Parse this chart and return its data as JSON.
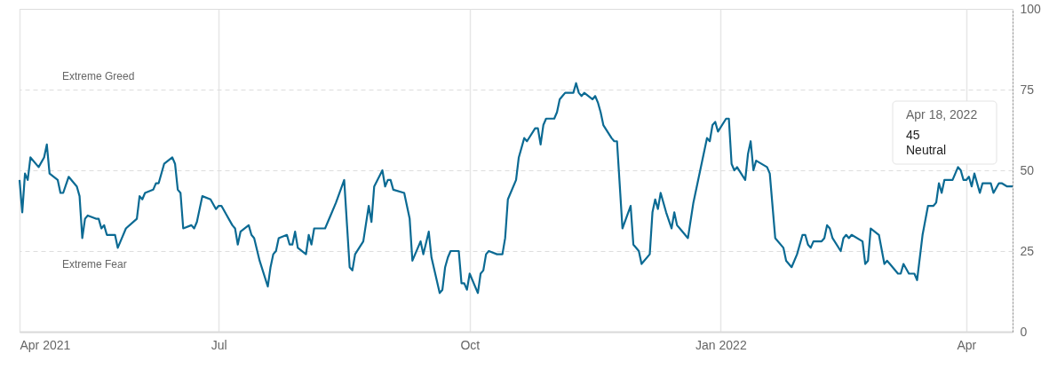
{
  "chart_data": {
    "type": "line",
    "color": "#0b6a93",
    "marker": "none",
    "line_style": "solid",
    "grid": true,
    "xlim": [
      "2021-04-19",
      "2022-04-18"
    ],
    "xticks": [
      {
        "value": "2021-04-19",
        "label": "Apr 2021"
      },
      {
        "value": "2021-07-01",
        "label": "Jul"
      },
      {
        "value": "2021-10-01",
        "label": "Oct"
      },
      {
        "value": "2022-01-01",
        "label": "Jan 2022"
      },
      {
        "value": "2022-04-01",
        "label": "Apr"
      }
    ],
    "ylim": [
      0,
      100
    ],
    "yticks": [
      0,
      25,
      50,
      75,
      100
    ],
    "annotations": [
      "Extreme Greed",
      "Extreme Fear",
      "Apr 18, 2022",
      "45",
      "Neutral"
    ],
    "x": [
      "2021-04-19",
      "2021-04-20",
      "2021-04-21",
      "2021-04-22",
      "2021-04-23",
      "2021-04-26",
      "2021-04-28",
      "2021-04-29",
      "2021-04-30",
      "2021-05-03",
      "2021-05-04",
      "2021-05-05",
      "2021-05-07",
      "2021-05-10",
      "2021-05-11",
      "2021-05-12",
      "2021-05-13",
      "2021-05-14",
      "2021-05-17",
      "2021-05-18",
      "2021-05-19",
      "2021-05-20",
      "2021-05-21",
      "2021-05-24",
      "2021-05-25",
      "2021-05-26",
      "2021-05-28",
      "2021-06-01",
      "2021-06-02",
      "2021-06-03",
      "2021-06-04",
      "2021-06-07",
      "2021-06-08",
      "2021-06-09",
      "2021-06-11",
      "2021-06-14",
      "2021-06-15",
      "2021-06-16",
      "2021-06-17",
      "2021-06-18",
      "2021-06-21",
      "2021-06-22",
      "2021-06-23",
      "2021-06-25",
      "2021-06-28",
      "2021-06-30",
      "2021-07-01",
      "2021-07-02",
      "2021-07-06",
      "2021-07-07",
      "2021-07-08",
      "2021-07-09",
      "2021-07-12",
      "2021-07-13",
      "2021-07-14",
      "2021-07-16",
      "2021-07-19",
      "2021-07-20",
      "2021-07-21",
      "2021-07-22",
      "2021-07-23",
      "2021-07-26",
      "2021-07-27",
      "2021-07-28",
      "2021-07-29",
      "2021-07-30",
      "2021-08-02",
      "2021-08-03",
      "2021-08-04",
      "2021-08-05",
      "2021-08-07",
      "2021-08-09",
      "2021-08-10",
      "2021-08-11",
      "2021-08-13",
      "2021-08-16",
      "2021-08-18",
      "2021-08-19",
      "2021-08-20",
      "2021-08-23",
      "2021-08-25",
      "2021-08-26",
      "2021-08-27",
      "2021-08-30",
      "2021-08-31",
      "2021-09-01",
      "2021-09-02",
      "2021-09-03",
      "2021-09-07",
      "2021-09-08",
      "2021-09-09",
      "2021-09-10",
      "2021-09-13",
      "2021-09-14",
      "2021-09-16",
      "2021-09-17",
      "2021-09-20",
      "2021-09-21",
      "2021-09-22",
      "2021-09-23",
      "2021-09-24",
      "2021-09-27",
      "2021-09-28",
      "2021-09-29",
      "2021-09-30",
      "2021-10-01",
      "2021-10-04",
      "2021-10-05",
      "2021-10-06",
      "2021-10-07",
      "2021-10-08",
      "2021-10-11",
      "2021-10-12",
      "2021-10-13",
      "2021-10-14",
      "2021-10-15",
      "2021-10-18",
      "2021-10-19",
      "2021-10-21",
      "2021-10-22",
      "2021-10-25",
      "2021-10-26",
      "2021-10-27",
      "2021-10-28",
      "2021-10-29",
      "2021-11-01",
      "2021-11-02",
      "2021-11-03",
      "2021-11-04",
      "2021-11-05",
      "2021-11-08",
      "2021-11-09",
      "2021-11-10",
      "2021-11-11",
      "2021-11-12",
      "2021-11-15",
      "2021-11-16",
      "2021-11-17",
      "2021-11-18",
      "2021-11-19",
      "2021-11-22",
      "2021-11-23",
      "2021-11-24",
      "2021-11-26",
      "2021-11-29",
      "2021-11-30",
      "2021-12-02",
      "2021-12-03",
      "2021-12-06",
      "2021-12-07",
      "2021-12-08",
      "2021-12-09",
      "2021-12-10",
      "2021-12-12",
      "2021-12-14",
      "2021-12-15",
      "2021-12-16",
      "2021-12-17",
      "2021-12-20",
      "2021-12-22",
      "2021-12-27",
      "2021-12-28",
      "2021-12-29",
      "2021-12-30",
      "2021-12-31",
      "2022-01-03",
      "2022-01-04",
      "2022-01-05",
      "2022-01-06",
      "2022-01-07",
      "2022-01-10",
      "2022-01-11",
      "2022-01-12",
      "2022-01-13",
      "2022-01-14",
      "2022-01-18",
      "2022-01-19",
      "2022-01-21",
      "2022-01-24",
      "2022-01-25",
      "2022-01-27",
      "2022-01-29",
      "2022-01-31",
      "2022-02-01",
      "2022-02-02",
      "2022-02-03",
      "2022-02-04",
      "2022-02-07",
      "2022-02-08",
      "2022-02-09",
      "2022-02-10",
      "2022-02-11",
      "2022-02-14",
      "2022-02-15",
      "2022-02-16",
      "2022-02-17",
      "2022-02-18",
      "2022-02-22",
      "2022-02-23",
      "2022-02-24",
      "2022-02-25",
      "2022-02-28",
      "2022-03-02",
      "2022-03-03",
      "2022-03-04",
      "2022-03-07",
      "2022-03-08",
      "2022-03-09",
      "2022-03-11",
      "2022-03-13",
      "2022-03-14",
      "2022-03-16",
      "2022-03-18",
      "2022-03-20",
      "2022-03-21",
      "2022-03-22",
      "2022-03-23",
      "2022-03-24",
      "2022-03-27",
      "2022-03-28",
      "2022-03-29",
      "2022-03-30",
      "2022-03-31",
      "2022-04-01",
      "2022-04-02",
      "2022-04-03",
      "2022-04-04",
      "2022-04-06",
      "2022-04-07",
      "2022-04-10",
      "2022-04-11",
      "2022-04-13",
      "2022-04-14",
      "2022-04-16",
      "2022-04-18"
    ],
    "values": [
      47,
      37,
      49,
      47,
      54,
      51,
      54,
      58,
      49,
      47,
      43,
      43,
      48,
      45,
      42,
      29,
      35,
      36,
      35,
      35,
      32,
      33,
      30,
      30,
      26,
      28,
      32,
      35,
      42,
      41,
      43,
      44,
      46,
      46,
      52,
      54,
      52,
      44,
      43,
      32,
      33,
      32,
      34,
      42,
      41,
      38,
      39,
      39,
      33,
      32,
      27,
      31,
      33,
      30,
      29,
      22,
      14,
      20,
      24,
      25,
      29,
      30,
      27,
      27,
      31,
      26,
      24,
      30,
      27,
      32,
      32,
      32,
      34,
      36,
      40,
      47,
      20,
      19,
      24,
      28,
      39,
      34,
      45,
      50,
      45,
      47,
      47,
      44,
      43,
      39,
      35,
      22,
      28,
      24,
      31,
      23,
      12,
      13,
      20,
      23,
      25,
      25,
      15,
      15,
      13,
      18,
      12,
      18,
      19,
      24,
      25,
      24,
      24,
      24,
      29,
      41,
      47,
      54,
      60,
      59,
      63,
      63,
      58,
      64,
      66,
      66,
      68,
      72,
      73,
      74,
      74,
      77,
      74,
      73,
      74,
      72,
      73,
      71,
      68,
      64,
      60,
      59,
      59,
      32,
      39,
      27,
      25,
      21,
      24,
      37,
      41,
      38,
      43,
      37,
      32,
      37,
      33,
      32,
      29,
      40,
      60,
      59,
      64,
      65,
      62,
      66,
      66,
      52,
      50,
      51,
      47,
      55,
      59,
      50,
      53,
      51,
      49,
      29,
      26,
      22,
      20,
      24,
      30,
      30,
      27,
      26,
      28,
      28,
      29,
      33,
      32,
      29,
      25,
      29,
      30,
      29,
      30,
      28,
      21,
      22,
      32,
      30,
      21,
      22,
      21,
      18,
      18,
      21,
      18,
      18,
      16,
      30,
      39,
      39,
      40,
      46,
      43,
      47,
      47,
      49,
      51,
      50,
      47,
      47,
      48,
      45,
      49,
      43,
      46,
      46,
      43,
      46,
      46,
      45,
      45
    ]
  }
}
